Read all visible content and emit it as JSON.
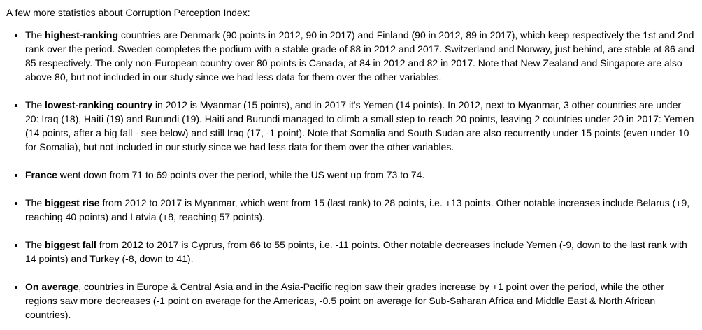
{
  "intro": "A few more statistics about Corruption Perception Index:",
  "items": [
    {
      "pre": "The ",
      "bold": "highest-ranking",
      "post": " countries are Denmark (90 points in 2012, 90 in 2017) and Finland (90 in 2012, 89 in 2017), which keep respectively the 1st and 2nd rank over the period. Sweden completes the podium with a stable grade of 88 in 2012 and 2017. Switzerland and Norway, just behind, are stable at 86 and 85 respectively. The only non-European country over 80 points is Canada, at 84 in 2012 and 82 in 2017. Note that New Zealand and Singapore are also above 80, but not included in our study since we had less data for them over the other variables."
    },
    {
      "pre": "The ",
      "bold": "lowest-ranking country",
      "post": " in 2012 is Myanmar (15 points), and in 2017 it's Yemen (14 points). In 2012, next to Myanmar, 3 other countries are under 20: Iraq (18), Haiti (19) and Burundi (19). Haiti and Burundi managed to climb a small step to reach 20 points, leaving 2 countries under 20 in 2017: Yemen (14 points, after a big fall - see below) and still Iraq (17, -1 point). Note that Somalia and South Sudan are also recurrently under 15 points (even under 10 for Somalia), but not included in our study since we had less data for them over the other variables."
    },
    {
      "pre": "",
      "bold": "France",
      "post": " went down from 71 to 69 points over the period, while the US went up from 73 to 74."
    },
    {
      "pre": "The ",
      "bold": "biggest rise",
      "post": " from 2012 to 2017 is Myanmar, which went from 15 (last rank) to 28 points, i.e. +13 points. Other notable increases include Belarus (+9, reaching 40 points) and Latvia (+8, reaching 57 points)."
    },
    {
      "pre": "The ",
      "bold": "biggest fall",
      "post": " from 2012 to 2017 is Cyprus, from 66 to 55 points, i.e. -11 points. Other notable decreases include Yemen (-9, down to the last rank with 14 points) and Turkey (-8, down to 41)."
    },
    {
      "pre": "",
      "bold": "On average",
      "post": ", countries in Europe & Central Asia and in the Asia-Pacific region saw their grades increase by +1 point over the period, while the other regions saw more decreases (-1 point on average for the Americas, -0.5 point on average for Sub-Saharan Africa and Middle East & North African countries)."
    }
  ]
}
